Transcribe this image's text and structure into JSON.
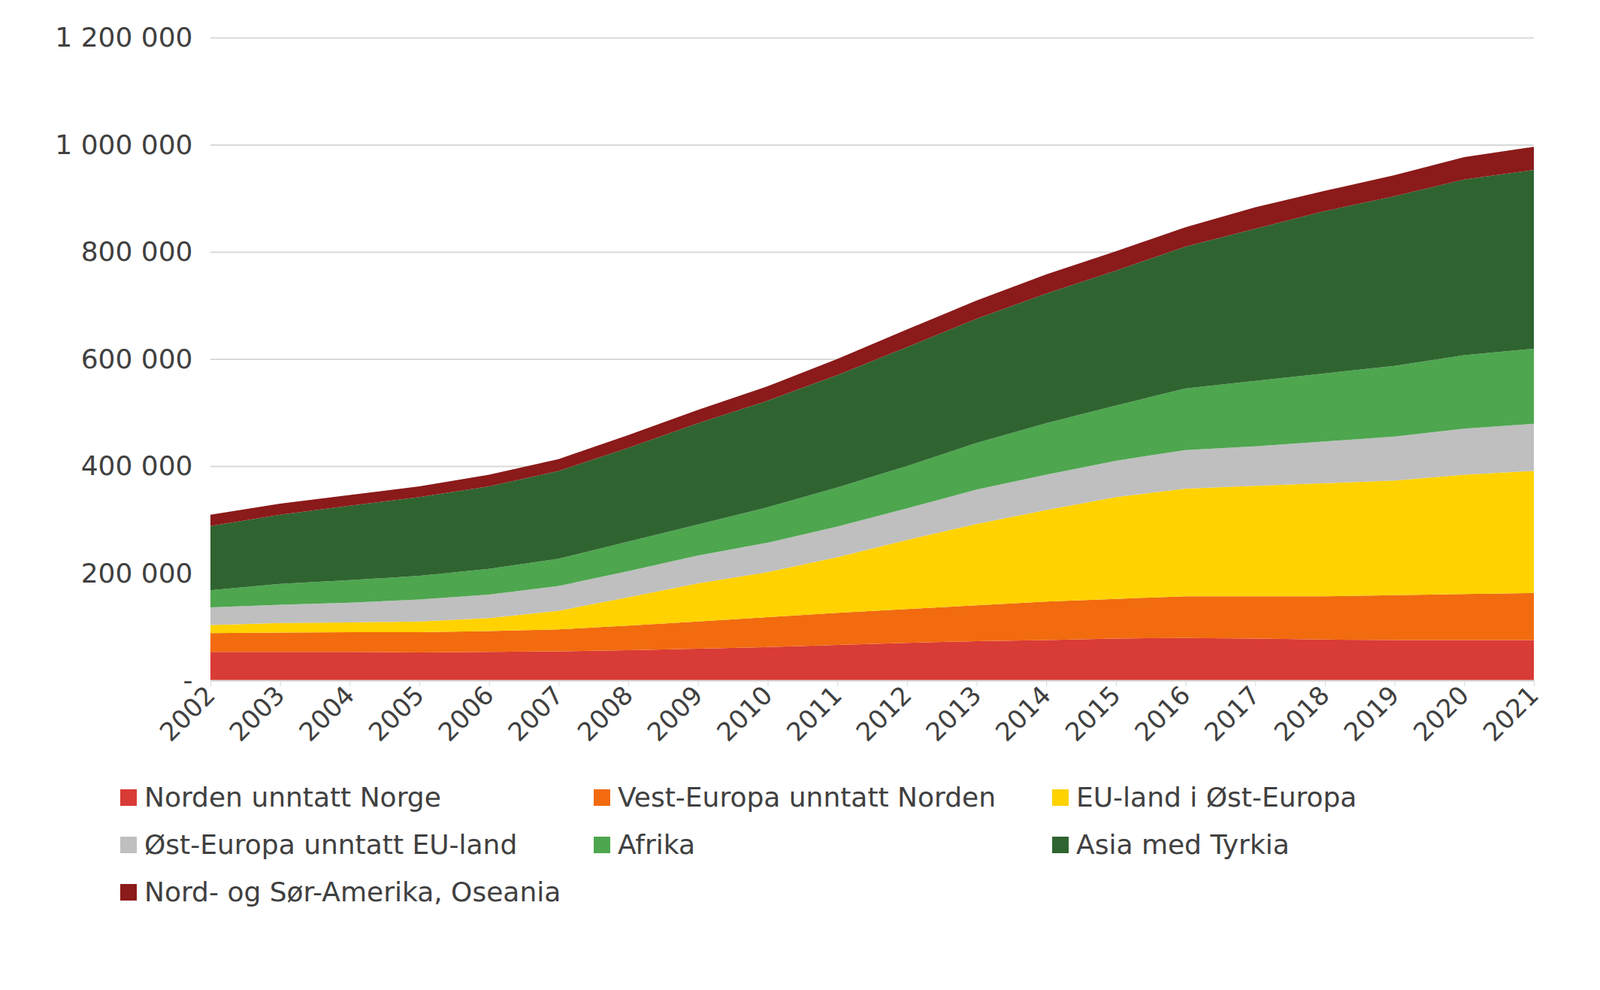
{
  "chart_data": {
    "type": "area",
    "stacked": true,
    "grid": true,
    "legend": "bottom",
    "x": [
      2002,
      2003,
      2004,
      2005,
      2006,
      2007,
      2008,
      2009,
      2010,
      2011,
      2012,
      2013,
      2014,
      2015,
      2016,
      2017,
      2018,
      2019,
      2020,
      2021
    ],
    "xlim": [
      2002,
      2021
    ],
    "xticks": [
      2002,
      2003,
      2004,
      2005,
      2006,
      2007,
      2008,
      2009,
      2010,
      2011,
      2012,
      2013,
      2014,
      2015,
      2016,
      2017,
      2018,
      2019,
      2020,
      2021
    ],
    "ylim": [
      0,
      1200000
    ],
    "yticks": [
      {
        "value": 0,
        "label": "-"
      },
      {
        "value": 200000,
        "label": "200 000"
      },
      {
        "value": 400000,
        "label": "400 000"
      },
      {
        "value": 600000,
        "label": "600 000"
      },
      {
        "value": 800000,
        "label": "800 000"
      },
      {
        "value": 1000000,
        "label": "1 000 000"
      },
      {
        "value": 1200000,
        "label": "1 200 000"
      }
    ],
    "series": [
      {
        "name": "Norden unntatt Norge",
        "color": "#d93b36",
        "values": [
          53000,
          53000,
          53000,
          52000,
          53000,
          54000,
          56000,
          59000,
          62000,
          66000,
          70000,
          73000,
          75000,
          78000,
          79000,
          78000,
          76000,
          75000,
          75000,
          75000
        ]
      },
      {
        "name": "Vest-Europa unntatt Norden",
        "color": "#f26b0f",
        "values": [
          35000,
          36000,
          37000,
          38000,
          39000,
          41000,
          46000,
          51000,
          56000,
          60000,
          63000,
          67000,
          72000,
          74000,
          78000,
          79000,
          81000,
          84000,
          86000,
          88000
        ]
      },
      {
        "name": "EU-land i Øst-Europa",
        "color": "#ffd200",
        "values": [
          15000,
          18000,
          18000,
          20000,
          24000,
          35000,
          53000,
          71000,
          84000,
          104000,
          129000,
          152000,
          171000,
          190000,
          201000,
          206000,
          211000,
          214000,
          223000,
          228000
        ]
      },
      {
        "name": "Øst-Europa unntatt EU-land",
        "color": "#bfbfbf",
        "values": [
          33000,
          34000,
          37000,
          41000,
          44000,
          46000,
          49000,
          52000,
          55000,
          57000,
          59000,
          64000,
          66000,
          68000,
          72000,
          74000,
          78000,
          82000,
          86000,
          88000
        ]
      },
      {
        "name": "Afrika",
        "color": "#4ea64f",
        "values": [
          32000,
          39000,
          42000,
          44000,
          48000,
          51000,
          55000,
          58000,
          66000,
          73000,
          79000,
          87000,
          96000,
          103000,
          115000,
          122000,
          127000,
          132000,
          137000,
          140000
        ]
      },
      {
        "name": "Asia med Tyrkia",
        "color": "#2f6430",
        "values": [
          120000,
          129000,
          139000,
          147000,
          154000,
          164000,
          175000,
          189000,
          199000,
          210000,
          222000,
          232000,
          242000,
          252000,
          265000,
          284000,
          303000,
          317000,
          328000,
          334000
        ]
      },
      {
        "name": "Nord- og Sør-Amerika, Oseania",
        "color": "#8b1a1a",
        "values": [
          21000,
          21000,
          20000,
          20000,
          22000,
          22000,
          24000,
          25000,
          27000,
          30000,
          33000,
          34000,
          36000,
          36000,
          36000,
          40000,
          38000,
          39000,
          42000,
          43000
        ]
      }
    ]
  }
}
